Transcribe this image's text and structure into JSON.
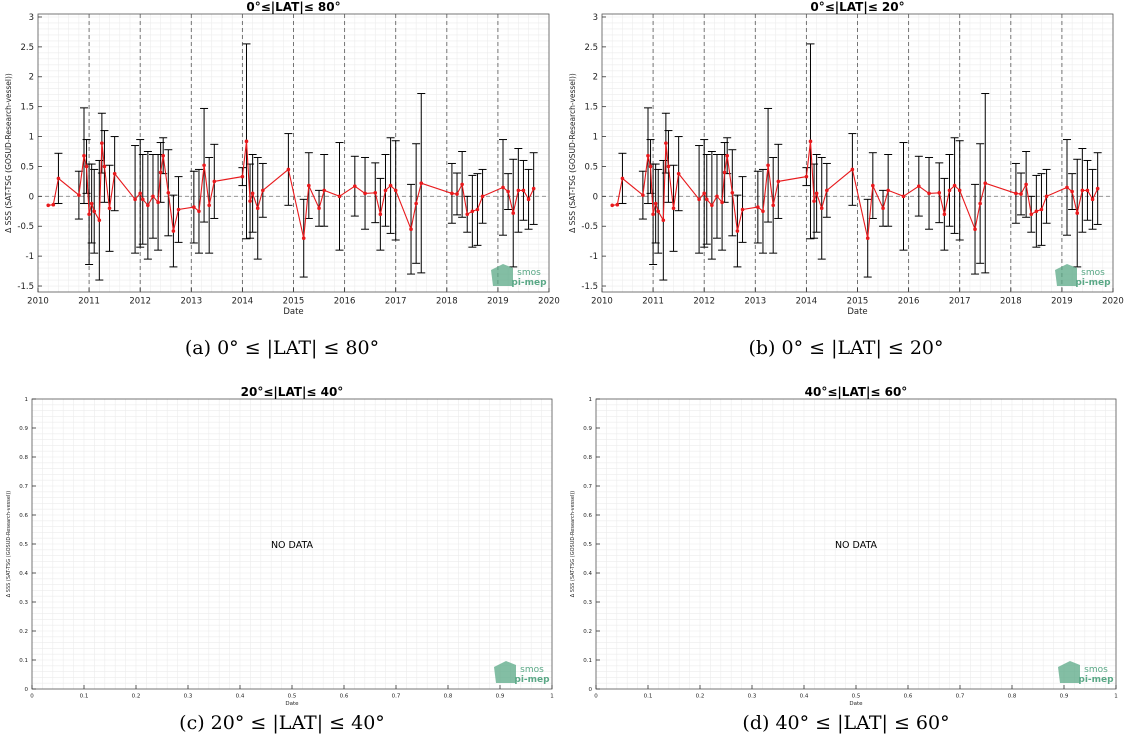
{
  "charts": [
    {
      "id": "a",
      "chart_data": {
        "type": "line",
        "title": "0°≤|LAT|≤ 80°",
        "xlabel": "Date",
        "ylabel": "Δ SSS (SAT-TSG (GOSUD-Research-vessel))",
        "xlim": [
          2010,
          2020
        ],
        "ylim": [
          -1.6,
          3.05
        ],
        "xticks": [
          "2010",
          "2011",
          "2012",
          "2013",
          "2014",
          "2015",
          "2016",
          "2017",
          "2018",
          "2019",
          "2020"
        ],
        "yticks": [
          "-1.5",
          "-1",
          "-0.5",
          "0",
          "0.5",
          "1",
          "1.5",
          "2",
          "2.5",
          "3"
        ],
        "grid": true,
        "year_lines": [
          2011,
          2012,
          2013,
          2014,
          2015,
          2016,
          2017,
          2018,
          2019
        ],
        "series": [
          {
            "x": [
              2010.2,
              2010.3,
              2010.4,
              2010.8,
              2010.9,
              2010.95,
              2011.0,
              2011.05,
              2011.1,
              2011.2,
              2011.25,
              2011.3,
              2011.4,
              2011.5,
              2011.9,
              2012.0,
              2012.05,
              2012.15,
              2012.25,
              2012.35,
              2012.4,
              2012.45,
              2012.55,
              2012.65,
              2012.75,
              2013.05,
              2013.15,
              2013.25,
              2013.35,
              2013.45,
              2014.0,
              2014.08,
              2014.15,
              2014.2,
              2014.3,
              2014.4,
              2014.9,
              2015.2,
              2015.3,
              2015.5,
              2015.6,
              2015.9,
              2016.2,
              2016.4,
              2016.6,
              2016.7,
              2016.8,
              2016.9,
              2017.0,
              2017.3,
              2017.4,
              2017.5,
              2018.1,
              2018.2,
              2018.3,
              2018.4,
              2018.5,
              2018.6,
              2018.7,
              2019.1,
              2019.2,
              2019.3,
              2019.4,
              2019.5,
              2019.6,
              2019.7
            ],
            "y": [
              -0.15,
              -0.14,
              0.3,
              0.02,
              0.68,
              0.5,
              -0.3,
              -0.12,
              -0.25,
              -0.4,
              0.89,
              0.5,
              -0.2,
              0.38,
              -0.05,
              0.05,
              -0.05,
              -0.15,
              0.0,
              -0.1,
              0.4,
              0.68,
              0.06,
              -0.58,
              -0.22,
              -0.18,
              -0.25,
              0.52,
              -0.15,
              0.25,
              0.33,
              0.92,
              -0.08,
              0.05,
              -0.2,
              0.1,
              0.45,
              -0.7,
              0.18,
              -0.2,
              0.1,
              0.0,
              0.17,
              0.05,
              0.06,
              -0.3,
              0.1,
              0.18,
              0.1,
              -0.55,
              -0.12,
              0.22,
              0.05,
              0.04,
              0.2,
              -0.3,
              -0.25,
              -0.22,
              0.0,
              0.15,
              0.08,
              -0.28,
              0.1,
              0.1,
              -0.05,
              0.13
            ],
            "err": [
              0.0,
              0.0,
              0.42,
              0.4,
              0.8,
              0.45,
              0.84,
              0.66,
              0.7,
              1.0,
              0.5,
              0.6,
              0.72,
              0.62,
              0.9,
              0.9,
              0.75,
              0.9,
              0.7,
              0.8,
              0.5,
              0.3,
              0.72,
              0.6,
              0.55,
              0.6,
              0.7,
              0.95,
              0.8,
              0.62,
              0.15,
              1.63,
              0.62,
              0.65,
              0.85,
              0.45,
              0.6,
              0.65,
              0.55,
              0.3,
              0.6,
              0.9,
              0.5,
              0.6,
              0.5,
              0.6,
              0.6,
              0.8,
              0.83,
              0.75,
              1.0,
              1.5,
              0.5,
              0.35,
              0.55,
              0.3,
              0.6,
              0.6,
              0.45,
              0.8,
              0.3,
              0.9,
              0.7,
              0.5,
              0.5,
              0.6
            ]
          }
        ]
      }
    },
    {
      "id": "b",
      "chart_data": {
        "type": "line",
        "title": "0°≤|LAT|≤ 20°",
        "xlabel": "Date",
        "ylabel": "Δ SSS (SAT-TSG (GOSUD-Research-vessel))",
        "xlim": [
          2010,
          2020
        ],
        "ylim": [
          -1.6,
          3.05
        ],
        "xticks": [
          "2010",
          "2011",
          "2012",
          "2013",
          "2014",
          "2015",
          "2016",
          "2017",
          "2018",
          "2019",
          "2020"
        ],
        "yticks": [
          "-1.5",
          "-1",
          "-0.5",
          "0",
          "0.5",
          "1",
          "1.5",
          "2",
          "2.5",
          "3"
        ],
        "grid": true,
        "year_lines": [
          2011,
          2012,
          2013,
          2014,
          2015,
          2016,
          2017,
          2018,
          2019
        ],
        "series": [
          {
            "x": [
              2010.2,
              2010.3,
              2010.4,
              2010.8,
              2010.9,
              2010.95,
              2011.0,
              2011.05,
              2011.1,
              2011.2,
              2011.25,
              2011.3,
              2011.4,
              2011.5,
              2011.9,
              2012.0,
              2012.05,
              2012.15,
              2012.25,
              2012.35,
              2012.4,
              2012.45,
              2012.55,
              2012.65,
              2012.75,
              2013.05,
              2013.15,
              2013.25,
              2013.35,
              2013.45,
              2014.0,
              2014.08,
              2014.15,
              2014.2,
              2014.3,
              2014.4,
              2014.9,
              2015.2,
              2015.3,
              2015.5,
              2015.6,
              2015.9,
              2016.2,
              2016.4,
              2016.6,
              2016.7,
              2016.8,
              2016.9,
              2017.0,
              2017.3,
              2017.4,
              2017.5,
              2018.1,
              2018.2,
              2018.3,
              2018.4,
              2018.5,
              2018.6,
              2018.7,
              2019.1,
              2019.2,
              2019.3,
              2019.4,
              2019.5,
              2019.6,
              2019.7
            ],
            "y": [
              -0.15,
              -0.14,
              0.3,
              0.02,
              0.68,
              0.5,
              -0.3,
              -0.12,
              -0.25,
              -0.4,
              0.89,
              0.5,
              -0.2,
              0.38,
              -0.05,
              0.05,
              -0.05,
              -0.15,
              0.0,
              -0.1,
              0.4,
              0.68,
              0.06,
              -0.58,
              -0.22,
              -0.18,
              -0.25,
              0.52,
              -0.15,
              0.25,
              0.33,
              0.92,
              -0.08,
              0.05,
              -0.2,
              0.1,
              0.45,
              -0.7,
              0.18,
              -0.2,
              0.1,
              0.0,
              0.17,
              0.05,
              0.06,
              -0.3,
              0.1,
              0.18,
              0.1,
              -0.55,
              -0.12,
              0.22,
              0.05,
              0.04,
              0.2,
              -0.3,
              -0.25,
              -0.22,
              0.0,
              0.15,
              0.08,
              -0.28,
              0.1,
              0.1,
              -0.05,
              0.13
            ],
            "err": [
              0.0,
              0.0,
              0.42,
              0.4,
              0.8,
              0.45,
              0.84,
              0.66,
              0.7,
              1.0,
              0.5,
              0.6,
              0.72,
              0.62,
              0.9,
              0.9,
              0.75,
              0.9,
              0.7,
              0.8,
              0.5,
              0.3,
              0.72,
              0.6,
              0.55,
              0.6,
              0.7,
              0.95,
              0.8,
              0.62,
              0.15,
              1.63,
              0.62,
              0.65,
              0.85,
              0.45,
              0.6,
              0.65,
              0.55,
              0.3,
              0.6,
              0.9,
              0.5,
              0.6,
              0.5,
              0.6,
              0.6,
              0.8,
              0.83,
              0.75,
              1.0,
              1.5,
              0.5,
              0.35,
              0.55,
              0.3,
              0.6,
              0.6,
              0.45,
              0.8,
              0.3,
              0.9,
              0.7,
              0.5,
              0.5,
              0.6
            ]
          }
        ]
      }
    },
    {
      "id": "c",
      "chart_data": {
        "type": "line",
        "title": "20°≤|LAT|≤ 40°",
        "xlabel": "Date",
        "ylabel": "Δ SSS (SAT-TSG (GOSUD-Research-vessel))",
        "xlim": [
          0,
          1
        ],
        "ylim": [
          0,
          1
        ],
        "xticks": [
          "0",
          "0.1",
          "0.2",
          "0.3",
          "0.4",
          "0.5",
          "0.6",
          "0.7",
          "0.8",
          "0.9",
          "1"
        ],
        "yticks": [
          "0",
          "0.1",
          "0.2",
          "0.3",
          "0.4",
          "0.5",
          "0.6",
          "0.7",
          "0.8",
          "0.9",
          "1"
        ],
        "grid": true,
        "annotation": "NO DATA",
        "series": []
      }
    },
    {
      "id": "d",
      "chart_data": {
        "type": "line",
        "title": "40°≤|LAT|≤ 60°",
        "xlabel": "Date",
        "ylabel": "Δ SSS (SAT-TSG (GOSUD-Research-vessel))",
        "xlim": [
          0,
          1
        ],
        "ylim": [
          0,
          1
        ],
        "xticks": [
          "0",
          "0.1",
          "0.2",
          "0.3",
          "0.4",
          "0.5",
          "0.6",
          "0.7",
          "0.8",
          "0.9",
          "1"
        ],
        "yticks": [
          "0",
          "0.1",
          "0.2",
          "0.3",
          "0.4",
          "0.5",
          "0.6",
          "0.7",
          "0.8",
          "0.9",
          "1"
        ],
        "grid": true,
        "annotation": "NO DATA",
        "series": []
      }
    }
  ],
  "logo": {
    "line1": "smos",
    "line2": "pi-mep",
    "color": "#5aa886"
  },
  "colors": {
    "series": "#e8191c",
    "error_bar": "#000000",
    "grid": "#ececec",
    "year_line": "#666666"
  },
  "captions": [
    "(a) 0° ≤ |LAT| ≤ 80°",
    "(b) 0° ≤ |LAT| ≤ 20°",
    "(c) 20° ≤ |LAT| ≤ 40°",
    "(d) 40° ≤ |LAT| ≤ 60°"
  ]
}
